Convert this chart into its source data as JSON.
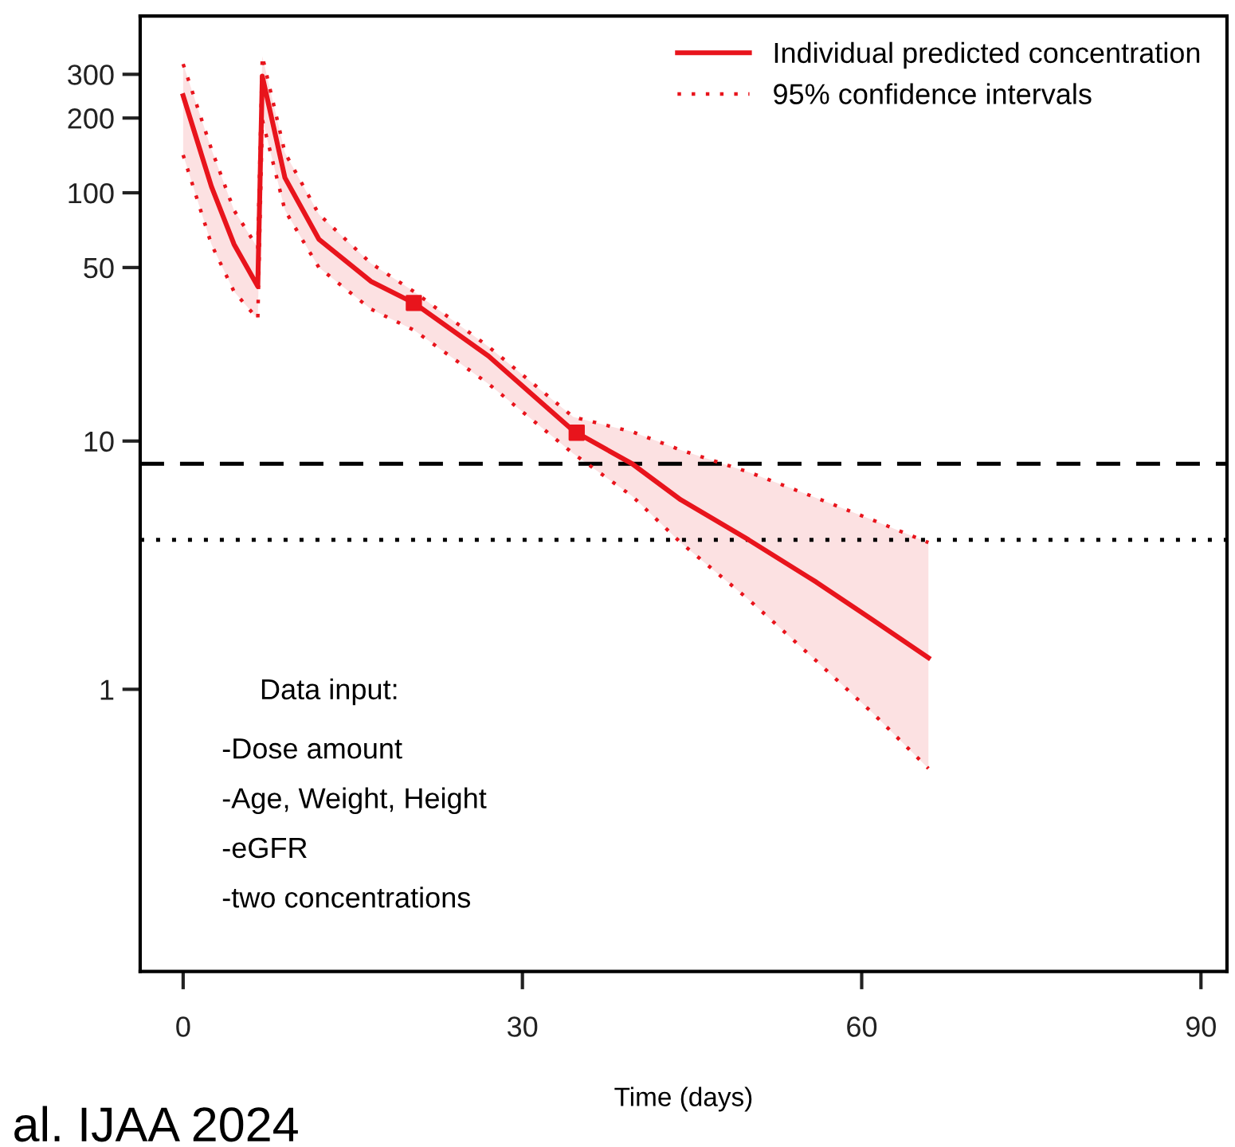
{
  "chart_data": {
    "type": "line",
    "xlabel": "Time (days)",
    "xlim": [
      -3.8,
      92.3
    ],
    "xticks": [
      0,
      30,
      60,
      90
    ],
    "ylim": [
      0.073,
      515
    ],
    "yticks": [
      1,
      10,
      50,
      100,
      200,
      300
    ],
    "log": true,
    "grid": false,
    "legend": "top right",
    "series": [
      {
        "name": "Individual predicted concentration",
        "color": "#e8141c",
        "line_style": "solid",
        "marker": "none",
        "x": [
          0,
          2.5,
          4.5,
          6.6,
          7,
          9,
          12,
          16.6,
          20.4,
          27,
          34.5,
          39.7,
          44,
          50,
          56,
          61,
          65.9
        ],
        "values": [
          246,
          106,
          62,
          42,
          295,
          115,
          65,
          44,
          36,
          22,
          11,
          8.1,
          5.8,
          4.0,
          2.7,
          1.9,
          1.34
        ],
        "lower": [
          142,
          62,
          40,
          31,
          197,
          85,
          50,
          34,
          28,
          17,
          8.9,
          6.0,
          3.9,
          2.3,
          1.3,
          0.8,
          0.48
        ],
        "upper": [
          330,
          150,
          85,
          60,
          355,
          145,
          82,
          52,
          40,
          24,
          12.5,
          10.9,
          9.2,
          7.5,
          5.9,
          4.8,
          3.9
        ]
      },
      {
        "name": "95% confidence intervals",
        "color": "#e8141c",
        "line_style": "dotted",
        "marker": "none",
        "x": [
          0,
          2.5,
          4.5,
          6.6,
          7,
          9,
          12,
          16.6,
          20.4,
          27,
          34.5,
          39.7,
          44,
          50,
          56,
          61,
          65.9
        ],
        "values": [
          330,
          150,
          85,
          60,
          355,
          145,
          82,
          52,
          40,
          24,
          12.5,
          10.9,
          9.2,
          7.5,
          5.9,
          4.8,
          3.9
        ]
      },
      {
        "color": "#e8141c",
        "line_style": "dotted",
        "marker": "none",
        "x": [
          0,
          2.5,
          4.5,
          6.6,
          7,
          9,
          12,
          16.6,
          20.4,
          27,
          34.5,
          39.7,
          44,
          50,
          56,
          61,
          65.9
        ],
        "values": [
          142,
          62,
          40,
          31,
          197,
          85,
          50,
          34,
          28,
          17,
          8.9,
          6.0,
          3.9,
          2.3,
          1.3,
          0.8,
          0.48
        ]
      },
      {
        "type": "scatter",
        "color": "#e8141c",
        "marker": "square",
        "x": [
          20.4,
          34.8
        ],
        "values": [
          36,
          10.8
        ]
      }
    ],
    "ref_lines": [
      {
        "axis": "y",
        "value": 8.1,
        "color": "#000000",
        "line_style": "dashed"
      },
      {
        "axis": "y",
        "value": 4.0,
        "color": "#000000",
        "line_style": "dotted"
      }
    ],
    "annotations": [
      "Data input:",
      "-Dose amount",
      "-Age, Weight, Height",
      "-eGFR",
      "-two concentrations",
      "al. IJAA 2024"
    ]
  }
}
